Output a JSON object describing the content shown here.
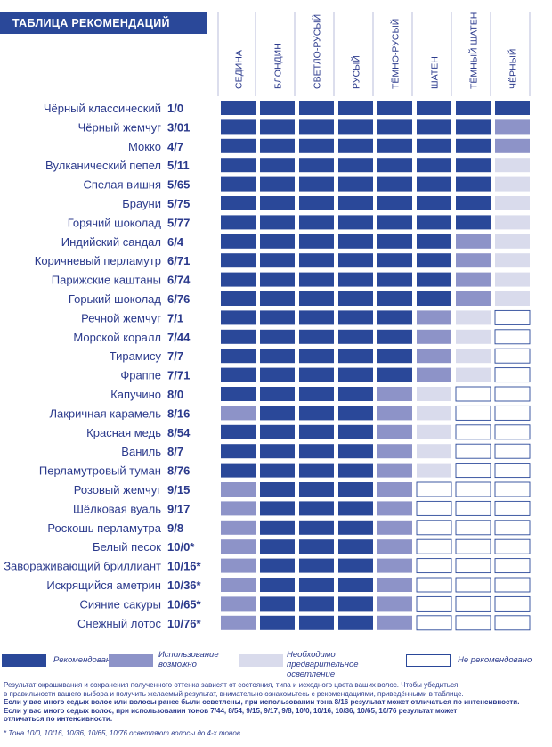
{
  "title": "ТАБЛИЦА РЕКОМЕНДАЦИЙ",
  "colors": {
    "recommended": "#2a4899",
    "possible": "#8d93c8",
    "prelighten": "#d9dbec",
    "not_recommended": "#ffffff",
    "text": "#2b3a8c"
  },
  "legend": [
    {
      "key": "recommended",
      "label": "Рекомендовано"
    },
    {
      "key": "possible",
      "label": "Использование возможно"
    },
    {
      "key": "prelighten",
      "label": "Необходимо предварительное осветление"
    },
    {
      "key": "not_recommended",
      "label": "Не рекомендовано"
    }
  ],
  "chart_data": {
    "type": "table",
    "columns": [
      "СЕДИНА",
      "БЛОНДИН",
      "СВЕТЛО-РУСЫЙ",
      "РУСЫЙ",
      "ТЁМНО-РУСЫЙ",
      "ШАТЕН",
      "ТЁМНЫЙ ШАТЕН",
      "ЧЁРНЫЙ"
    ],
    "value_levels": [
      "recommended",
      "possible",
      "prelighten",
      "not_recommended"
    ],
    "rows": [
      {
        "name": "Чёрный классический",
        "code": "1/0",
        "values": [
          "recommended",
          "recommended",
          "recommended",
          "recommended",
          "recommended",
          "recommended",
          "recommended",
          "recommended"
        ]
      },
      {
        "name": "Чёрный жемчуг",
        "code": "3/01",
        "values": [
          "recommended",
          "recommended",
          "recommended",
          "recommended",
          "recommended",
          "recommended",
          "recommended",
          "possible"
        ]
      },
      {
        "name": "Мокко",
        "code": "4/7",
        "values": [
          "recommended",
          "recommended",
          "recommended",
          "recommended",
          "recommended",
          "recommended",
          "recommended",
          "possible"
        ]
      },
      {
        "name": "Вулканический пепел",
        "code": "5/11",
        "values": [
          "recommended",
          "recommended",
          "recommended",
          "recommended",
          "recommended",
          "recommended",
          "recommended",
          "prelighten"
        ]
      },
      {
        "name": "Спелая вишня",
        "code": "5/65",
        "values": [
          "recommended",
          "recommended",
          "recommended",
          "recommended",
          "recommended",
          "recommended",
          "recommended",
          "prelighten"
        ]
      },
      {
        "name": "Брауни",
        "code": "5/75",
        "values": [
          "recommended",
          "recommended",
          "recommended",
          "recommended",
          "recommended",
          "recommended",
          "recommended",
          "prelighten"
        ]
      },
      {
        "name": "Горячий шоколад",
        "code": "5/77",
        "values": [
          "recommended",
          "recommended",
          "recommended",
          "recommended",
          "recommended",
          "recommended",
          "recommended",
          "prelighten"
        ]
      },
      {
        "name": "Индийский сандал",
        "code": "6/4",
        "values": [
          "recommended",
          "recommended",
          "recommended",
          "recommended",
          "recommended",
          "recommended",
          "possible",
          "prelighten"
        ]
      },
      {
        "name": "Коричневый перламутр",
        "code": "6/71",
        "values": [
          "recommended",
          "recommended",
          "recommended",
          "recommended",
          "recommended",
          "recommended",
          "possible",
          "prelighten"
        ]
      },
      {
        "name": "Парижские каштаны",
        "code": "6/74",
        "values": [
          "recommended",
          "recommended",
          "recommended",
          "recommended",
          "recommended",
          "recommended",
          "possible",
          "prelighten"
        ]
      },
      {
        "name": "Горький шоколад",
        "code": "6/76",
        "values": [
          "recommended",
          "recommended",
          "recommended",
          "recommended",
          "recommended",
          "recommended",
          "possible",
          "prelighten"
        ]
      },
      {
        "name": "Речной жемчуг",
        "code": "7/1",
        "values": [
          "recommended",
          "recommended",
          "recommended",
          "recommended",
          "recommended",
          "possible",
          "prelighten",
          "not_recommended"
        ]
      },
      {
        "name": "Морской коралл",
        "code": "7/44",
        "values": [
          "recommended",
          "recommended",
          "recommended",
          "recommended",
          "recommended",
          "possible",
          "prelighten",
          "not_recommended"
        ]
      },
      {
        "name": "Тирамису",
        "code": "7/7",
        "values": [
          "recommended",
          "recommended",
          "recommended",
          "recommended",
          "recommended",
          "possible",
          "prelighten",
          "not_recommended"
        ]
      },
      {
        "name": "Фраппе",
        "code": "7/71",
        "values": [
          "recommended",
          "recommended",
          "recommended",
          "recommended",
          "recommended",
          "possible",
          "prelighten",
          "not_recommended"
        ]
      },
      {
        "name": "Капучино",
        "code": "8/0",
        "values": [
          "recommended",
          "recommended",
          "recommended",
          "recommended",
          "possible",
          "prelighten",
          "not_recommended",
          "not_recommended"
        ]
      },
      {
        "name": "Лакричная карамель",
        "code": "8/16",
        "values": [
          "possible",
          "recommended",
          "recommended",
          "recommended",
          "possible",
          "prelighten",
          "not_recommended",
          "not_recommended"
        ]
      },
      {
        "name": "Красная медь",
        "code": "8/54",
        "values": [
          "recommended",
          "recommended",
          "recommended",
          "recommended",
          "possible",
          "prelighten",
          "not_recommended",
          "not_recommended"
        ]
      },
      {
        "name": "Ваниль",
        "code": "8/7",
        "values": [
          "recommended",
          "recommended",
          "recommended",
          "recommended",
          "possible",
          "prelighten",
          "not_recommended",
          "not_recommended"
        ]
      },
      {
        "name": "Перламутровый туман",
        "code": "8/76",
        "values": [
          "recommended",
          "recommended",
          "recommended",
          "recommended",
          "possible",
          "prelighten",
          "not_recommended",
          "not_recommended"
        ]
      },
      {
        "name": "Розовый жемчуг",
        "code": "9/15",
        "values": [
          "possible",
          "recommended",
          "recommended",
          "recommended",
          "possible",
          "not_recommended",
          "not_recommended",
          "not_recommended"
        ]
      },
      {
        "name": "Шёлковая вуаль",
        "code": "9/17",
        "values": [
          "possible",
          "recommended",
          "recommended",
          "recommended",
          "possible",
          "not_recommended",
          "not_recommended",
          "not_recommended"
        ]
      },
      {
        "name": "Роскошь перламутра",
        "code": "9/8",
        "values": [
          "possible",
          "recommended",
          "recommended",
          "recommended",
          "possible",
          "not_recommended",
          "not_recommended",
          "not_recommended"
        ]
      },
      {
        "name": "Белый песок",
        "code": "10/0*",
        "values": [
          "possible",
          "recommended",
          "recommended",
          "recommended",
          "possible",
          "not_recommended",
          "not_recommended",
          "not_recommended"
        ]
      },
      {
        "name": "Завораживающий бриллиант",
        "code": "10/16*",
        "values": [
          "possible",
          "recommended",
          "recommended",
          "recommended",
          "possible",
          "not_recommended",
          "not_recommended",
          "not_recommended"
        ]
      },
      {
        "name": "Искрящийся аметрин",
        "code": "10/36*",
        "values": [
          "possible",
          "recommended",
          "recommended",
          "recommended",
          "possible",
          "not_recommended",
          "not_recommended",
          "not_recommended"
        ]
      },
      {
        "name": "Сияние сакуры",
        "code": "10/65*",
        "values": [
          "possible",
          "recommended",
          "recommended",
          "recommended",
          "possible",
          "not_recommended",
          "not_recommended",
          "not_recommended"
        ]
      },
      {
        "name": "Снежный лотос",
        "code": "10/76*",
        "values": [
          "possible",
          "recommended",
          "recommended",
          "recommended",
          "possible",
          "not_recommended",
          "not_recommended",
          "not_recommended"
        ]
      }
    ]
  },
  "notes": [
    {
      "text": "Результат окрашивания и сохранения полученного оттенка зависят от состояния, типа и исходного цвета ваших волос. Чтобы убедиться",
      "bold": false
    },
    {
      "text": "в правильности вашего выбора и получить желаемый результат, внимательно ознакомьтесь с рекомендациями, приведёнными в таблице.",
      "bold": false
    },
    {
      "text": "Если у вас много седых волос или волосы ранее были осветлены, при использовании тона 8/16 результат может отличаться по интенсивности.",
      "bold": true
    },
    {
      "text": "Если у вас много седых волос, при использовании тонов 7/44, 8/54, 9/15, 9/17, 9/8, 10/0, 10/16, 10/36, 10/65, 10/76 результат может",
      "bold": true
    },
    {
      "text": "отличаться по интенсивности.",
      "bold": true
    }
  ],
  "footnote": "* Тона 10/0, 10/16, 10/36, 10/65, 10/76 осветляют волосы до 4-х тонов."
}
